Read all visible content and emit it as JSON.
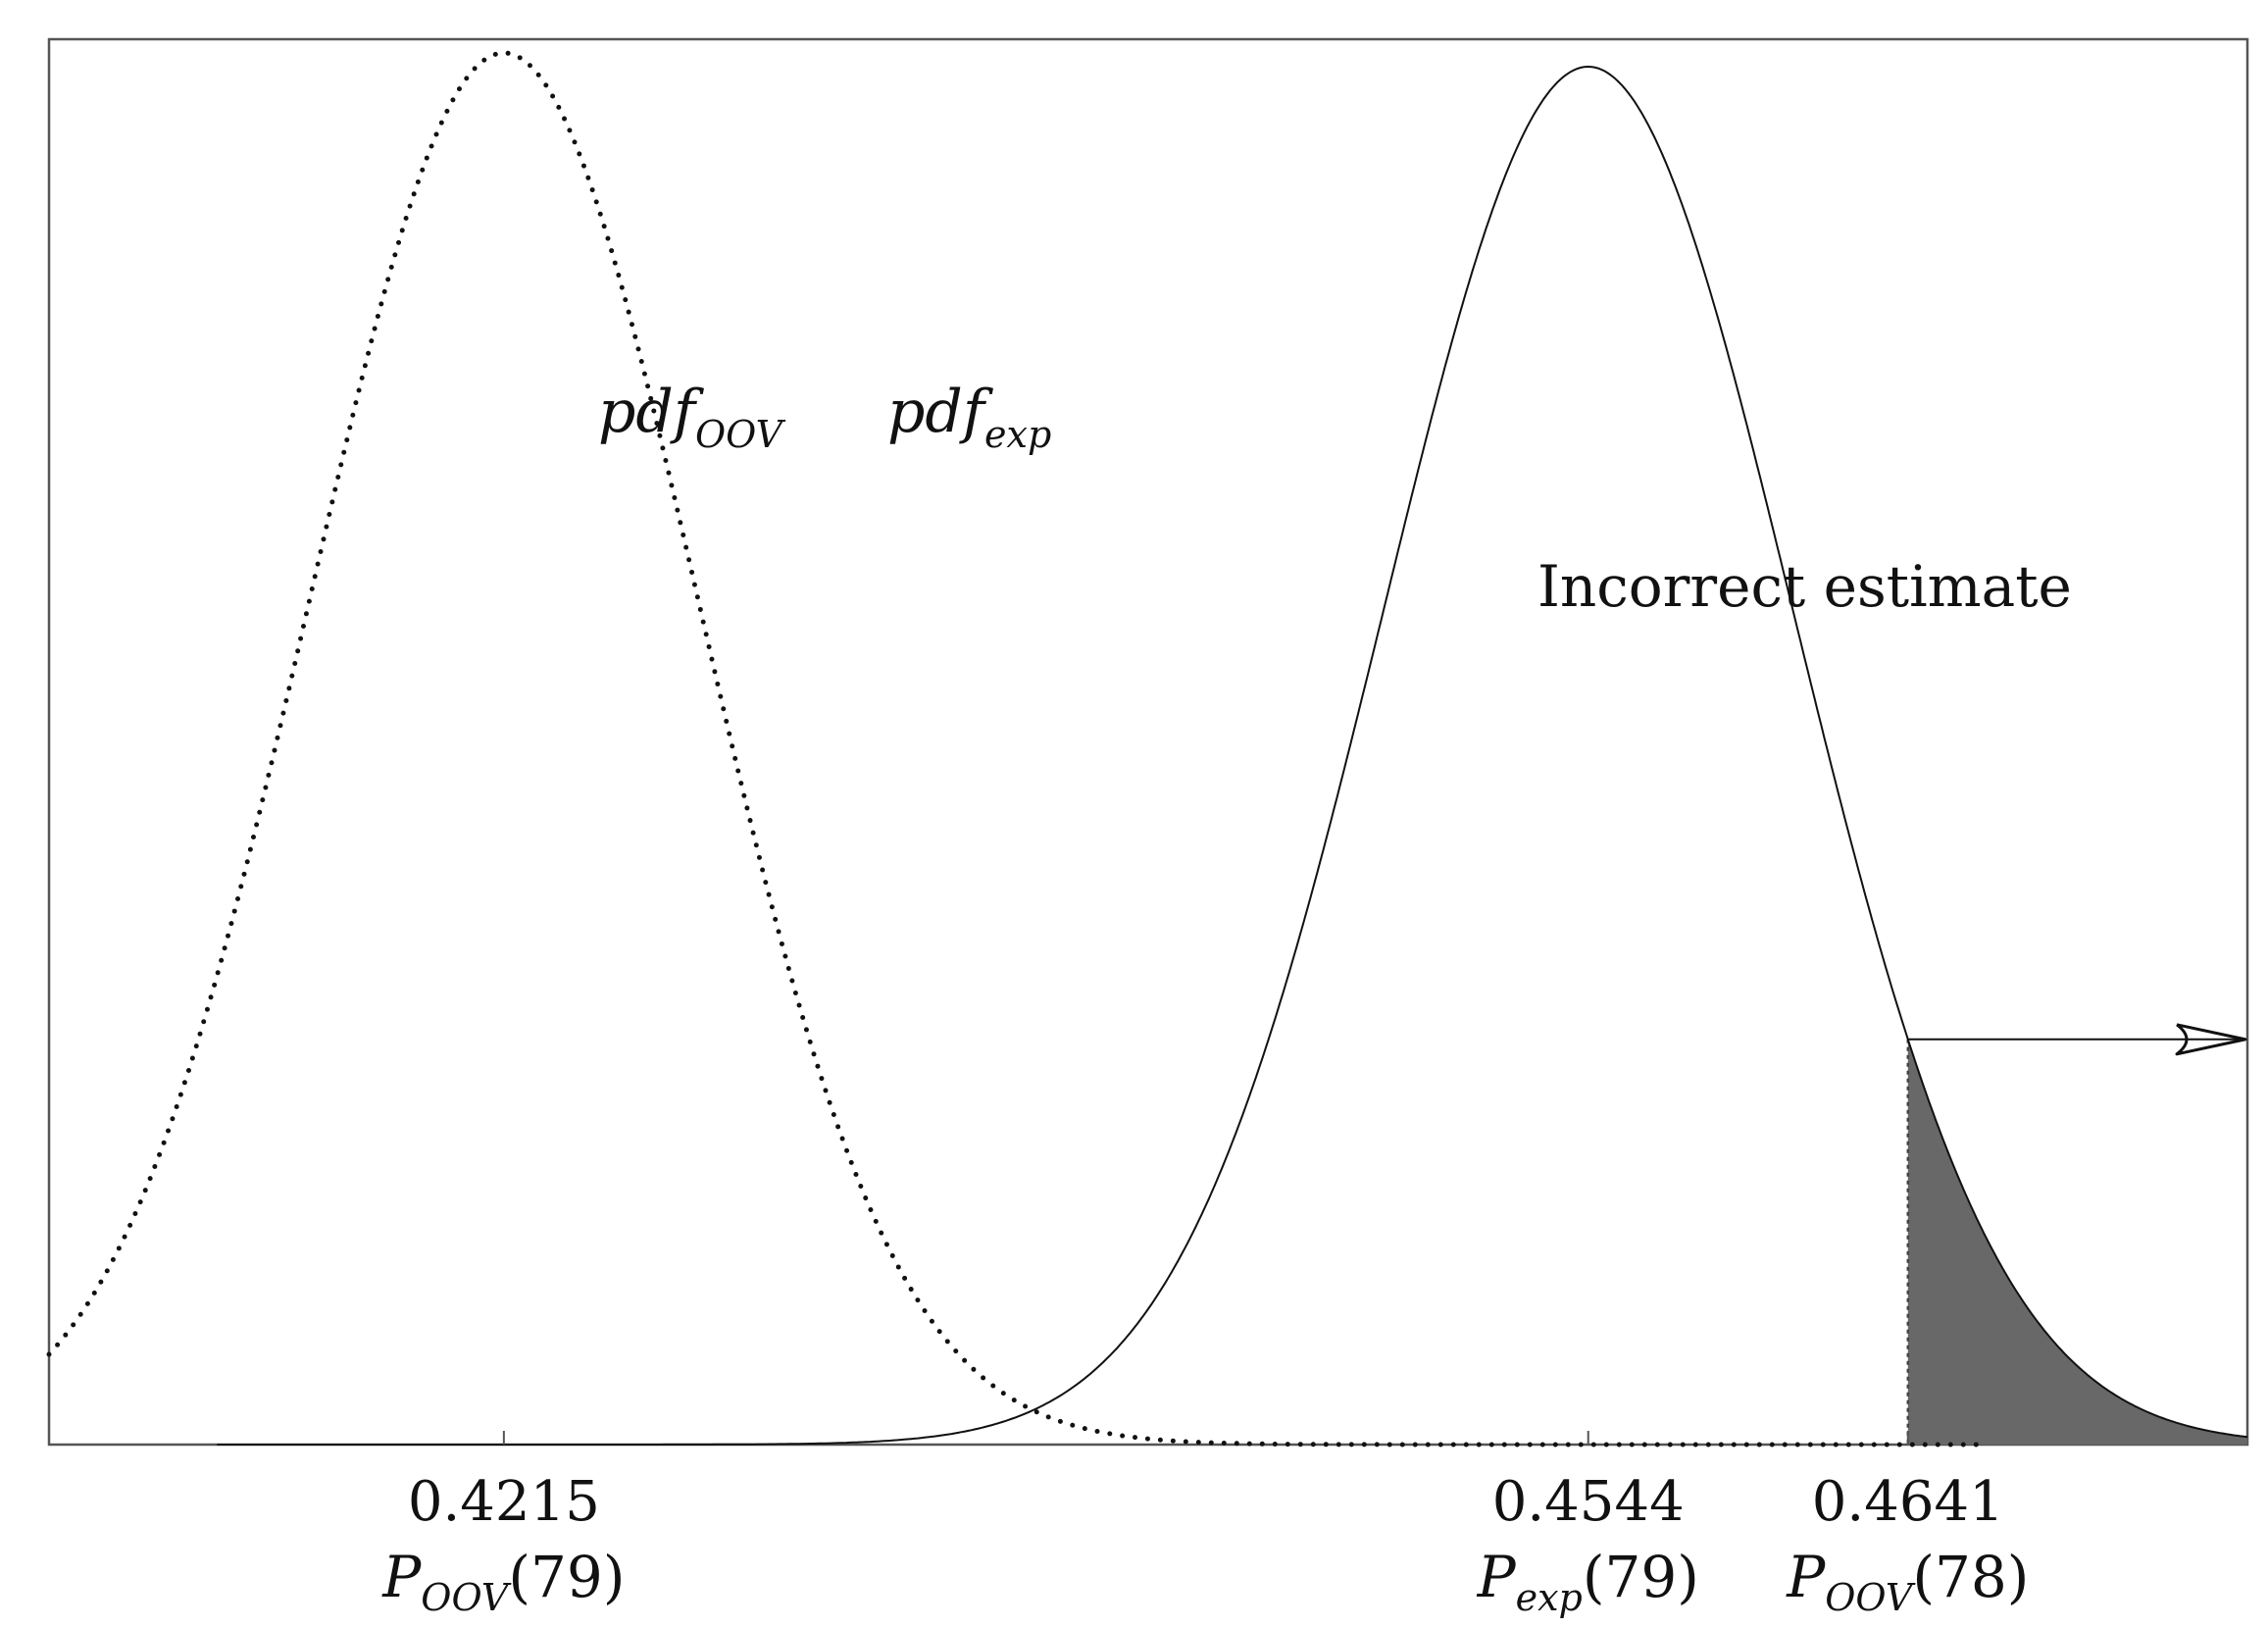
{
  "chart_data": {
    "type": "area",
    "title": "",
    "xlabel": "",
    "ylabel": "",
    "xlim": [
      0.4077,
      0.4744
    ],
    "ticks": [
      {
        "value": 0.4215,
        "value_label": "0.4215",
        "sym": "P",
        "sub": "OOV",
        "arg": "(79)"
      },
      {
        "value": 0.4544,
        "value_label": "0.4544",
        "sym": "P",
        "sub": "exp",
        "arg": "(79)"
      },
      {
        "value": 0.4641,
        "value_label": "0.4641",
        "sym": "P",
        "sub": "OOV",
        "arg": "(78)"
      }
    ],
    "series": [
      {
        "name_main": "pdf",
        "name_sub": "OOV",
        "style": "dotted",
        "mean": 0.4215,
        "sd": 0.0059,
        "peak": 1.01,
        "x_range": [
          0.4077,
          0.4664
        ]
      },
      {
        "name_main": "pdf",
        "name_sub": "exp",
        "style": "solid",
        "mean": 0.4544,
        "sd": 0.0062,
        "peak": 1.0,
        "x_range": [
          0.4128,
          0.4744
        ]
      }
    ],
    "shaded_region": {
      "series": "pdf_exp",
      "x_from": 0.4641,
      "x_to": 0.4744,
      "color": "#686868"
    },
    "annotation": {
      "text": "Incorrect estimate",
      "from_x": 0.4641,
      "to_x": 0.4744
    },
    "colors": {
      "line": "#111111",
      "fill": "#686868",
      "frame": "#555555"
    }
  }
}
